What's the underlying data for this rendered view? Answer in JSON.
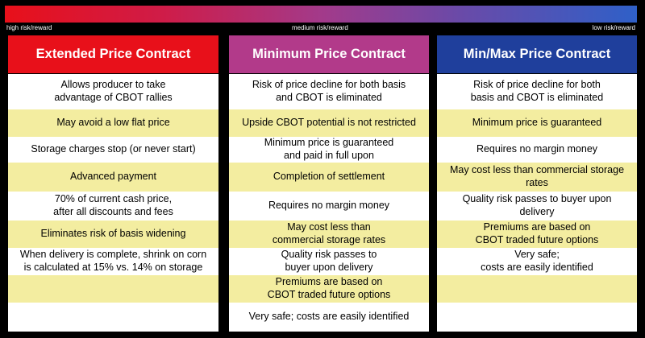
{
  "risk_scale": {
    "left_label": "high risk/reward",
    "mid_label": "medium risk/reward",
    "right_label": "low risk/reward"
  },
  "columns": [
    {
      "title": "Extended Price Contract",
      "rows": [
        "Allows producer to take\nadvantage of CBOT rallies",
        "May avoid a low flat price",
        "Storage charges stop (or never start)",
        "Advanced payment",
        "70% of current cash price,\nafter all discounts and fees",
        "Eliminates risk of basis widening",
        "When delivery is complete, shrink on corn\nis calculated at 15% vs. 14% on storage",
        "",
        ""
      ]
    },
    {
      "title": "Minimum Price Contract",
      "rows": [
        "Risk of price decline for both basis\nand CBOT is eliminated",
        "Upside CBOT potential is not restricted",
        "Minimum price is guaranteed\nand paid in full upon",
        "Completion of settlement",
        "Requires no margin money",
        "May cost less than\ncommercial storage rates",
        "Quality risk passes to\nbuyer upon delivery",
        "Premiums are based on\nCBOT traded future options",
        "Very safe; costs are easily identified"
      ]
    },
    {
      "title": "Min/Max Price Contract",
      "rows": [
        "Risk of price decline for both\nbasis and CBOT is eliminated",
        "Minimum price is guaranteed",
        "Requires no margin money",
        "May cost less than commercial storage\nrates",
        "Quality risk passes to buyer upon\ndelivery",
        "Premiums are based on\nCBOT traded future options",
        "Very safe;\ncosts are easily identified",
        "",
        ""
      ]
    }
  ]
}
